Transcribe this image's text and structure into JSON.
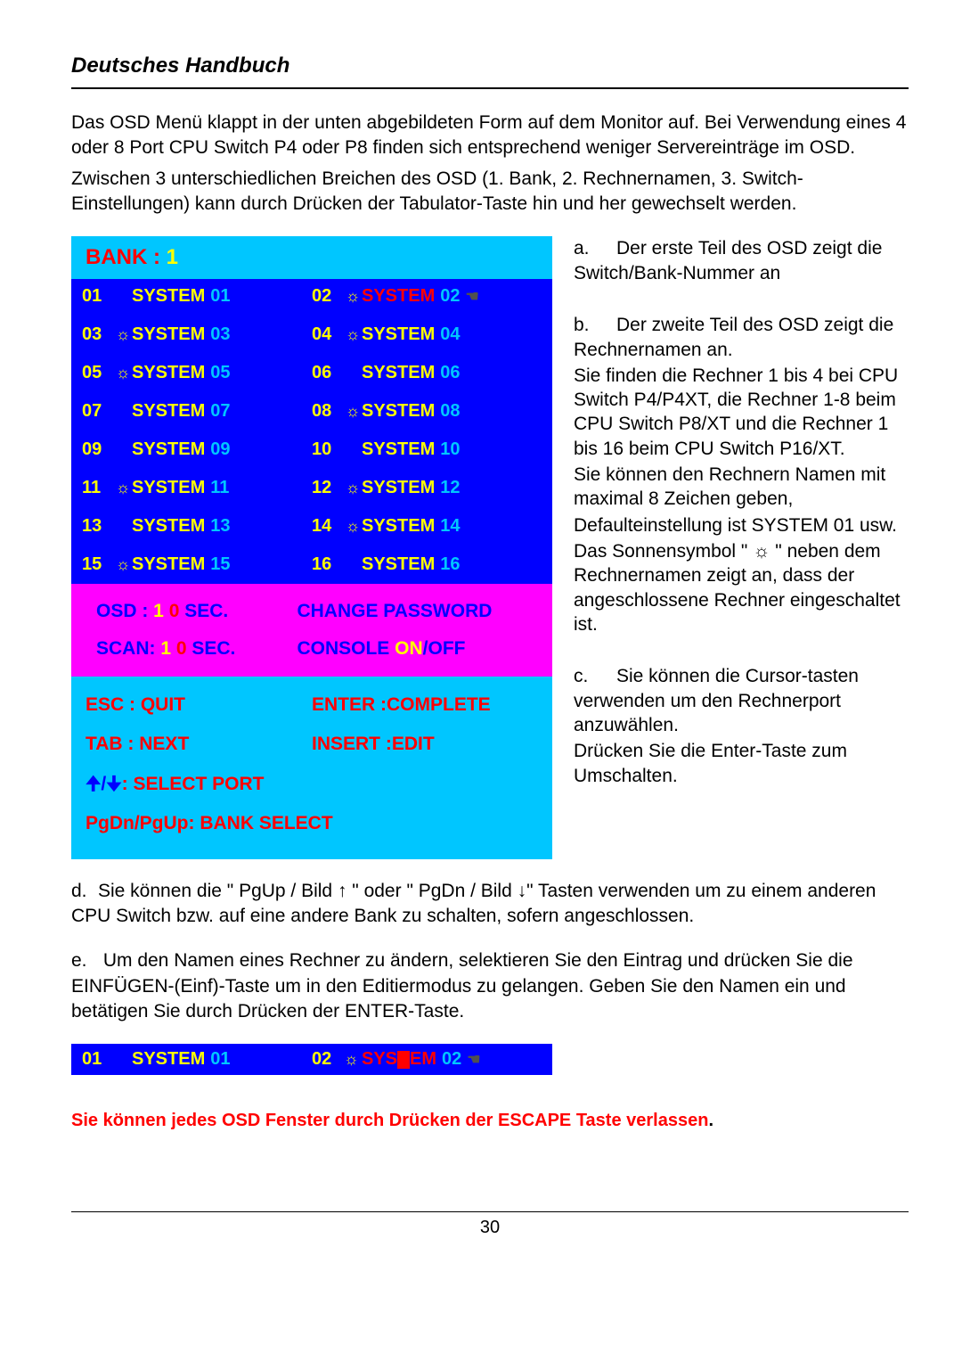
{
  "page": {
    "title": "Deutsches Handbuch",
    "p1": "Das OSD Menü klappt in der unten abgebildeten Form auf dem Monitor auf. Bei Verwendung eines 4 oder 8 Port CPU Switch P4 oder P8 finden sich entsprechend weniger Servereinträge im OSD.",
    "p2": "Zwischen 3 unterschiedlichen Breichen des OSD (1. Bank, 2.  Rechnernamen, 3. Switch-Einstellungen) kann durch Drücken der Tabulator-Taste hin und her gewechselt werden.",
    "footer": "30"
  },
  "osd": {
    "bank_label": "BANK : ",
    "bank_no": "1",
    "systems": [
      {
        "n": "01",
        "sun": false,
        "name": "SYSTEM",
        "suf": "01",
        "sel": false
      },
      {
        "n": "02",
        "sun": true,
        "name": "SYSTEM",
        "suf": "02",
        "sel": true,
        "hand": "☚"
      },
      {
        "n": "03",
        "sun": true,
        "name": "SYSTEM",
        "suf": "03",
        "sel": false
      },
      {
        "n": "04",
        "sun": true,
        "name": "SYSTEM",
        "suf": "04",
        "sel": false
      },
      {
        "n": "05",
        "sun": true,
        "name": "SYSTEM",
        "suf": "05",
        "sel": false
      },
      {
        "n": "06",
        "sun": false,
        "name": "SYSTEM",
        "suf": "06",
        "sel": false
      },
      {
        "n": "07",
        "sun": false,
        "name": "SYSTEM",
        "suf": "07",
        "sel": false
      },
      {
        "n": "08",
        "sun": true,
        "name": "SYSTEM",
        "suf": "08",
        "sel": false
      },
      {
        "n": "09",
        "sun": false,
        "name": "SYSTEM",
        "suf": "09",
        "sel": false
      },
      {
        "n": "10",
        "sun": false,
        "name": "SYSTEM",
        "suf": "10",
        "sel": false
      },
      {
        "n": "11",
        "sun": true,
        "name": "SYSTEM",
        "suf": "11",
        "sel": false
      },
      {
        "n": "12",
        "sun": true,
        "name": "SYSTEM",
        "suf": "12",
        "sel": false
      },
      {
        "n": "13",
        "sun": false,
        "name": "SYSTEM",
        "suf": "13",
        "sel": false
      },
      {
        "n": "14",
        "sun": true,
        "name": "SYSTEM",
        "suf": "14",
        "sel": false
      },
      {
        "n": "15",
        "sun": true,
        "name": "SYSTEM",
        "suf": "15",
        "sel": false
      },
      {
        "n": "16",
        "sun": false,
        "name": "SYSTEM",
        "suf": "16",
        "sel": false
      }
    ],
    "settings": {
      "osd_label": "OSD : ",
      "osd_t1": "1 ",
      "osd_t2": "0",
      "sec_label": " SEC.",
      "change_pw": "CHANGE PASSWORD",
      "scan_label": "SCAN: ",
      "scan_t1": "1 ",
      "scan_t2": "0",
      "console_label": "CONSOLE  ",
      "on": "ON",
      "slash": "/",
      "off": "OFF"
    },
    "controls": {
      "esc": "ESC : QUIT",
      "enter": "ENTER :COMPLETE",
      "tab": "TAB : NEXT",
      "insert": "INSERT :EDIT",
      "arrows": "🠉/🠋",
      "select_port": ": SELECT  PORT",
      "pg": "PgDn/PgUp: BANK  SELECT"
    }
  },
  "side": {
    "a1": "a.",
    "a2": "Der erste Teil des OSD zeigt die Switch/Bank-Nummer an",
    "b1": "b.",
    "b2": "Der zweite Teil des OSD zeigt die Rechnernamen an.",
    "b3": "Sie finden die Rechner 1 bis 4 bei CPU Switch P4/P4XT, die Rechner 1-8 beim CPU Switch P8/XT und die Rechner 1 bis 16 beim CPU Switch P16/XT.",
    "b4": "Sie können den Rechnern Namen mit maximal 8 Zeichen geben,",
    "b5": "Defaulteinstellung ist SYSTEM 01 usw.",
    "b6": "Das Sonnensymbol \" ☼ \" neben dem Rechnernamen zeigt an, dass der angeschlossene Rechner eingeschaltet ist.",
    "c1": "c.",
    "c2": "Sie können die Cursor-tasten verwenden um den Rechnerport anzuwählen.",
    "c3": "Drücken Sie die Enter-Taste zum Umschalten."
  },
  "after": {
    "d1": "d.",
    "d2": "Sie können die \" PgUp / Bild ↑ \" oder \" PgDn / Bild ↓\" Tasten verwenden um zu einem anderen CPU Switch bzw. auf eine andere Bank zu schalten, sofern angeschlossen.",
    "e1": "e.",
    "e2": " Um den Namen eines Rechner zu ändern, selektieren Sie den Eintrag und drücken Sie die EINFÜGEN-(Einf)-Taste um in den Editiermodus zu gelangen. Geben Sie den Namen ein und betätigen Sie durch Drücken der ENTER-Taste."
  },
  "edit_example": {
    "left": {
      "n": "01",
      "name": "SYSTEM",
      "suf": "01"
    },
    "right": {
      "n": "02",
      "pre": "SYS",
      "post": "EM",
      "suf": "02",
      "hand": "☚"
    }
  },
  "red_note": "Sie können jedes OSD Fenster durch Drücken der ESCAPE Taste verlassen",
  "colors": {
    "cyan": "#00c6ff",
    "blue": "#0000ff",
    "magenta": "#ff00ff",
    "red": "#ff0000",
    "yellow": "#ffff00",
    "handgrey": "#505050"
  }
}
